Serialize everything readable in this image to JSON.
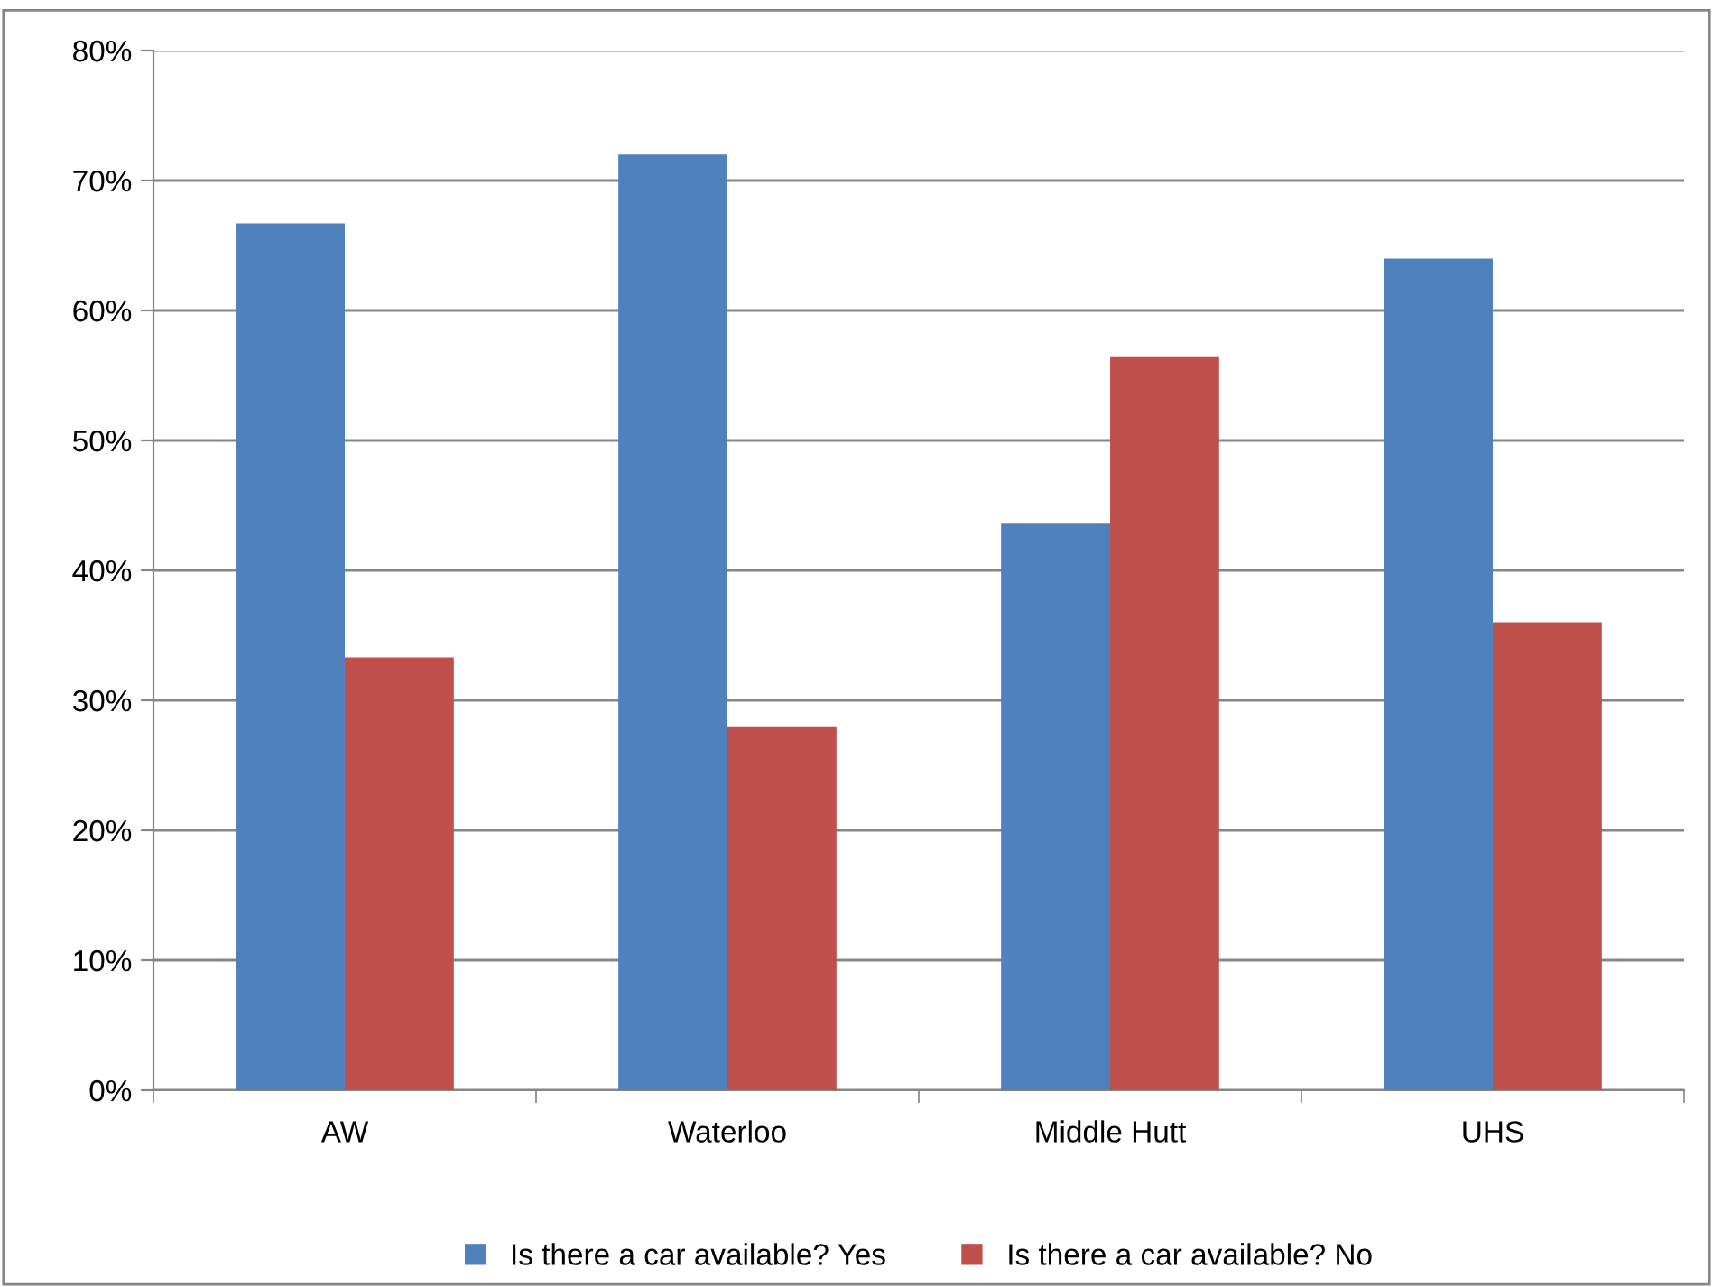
{
  "chart_data": {
    "type": "bar",
    "categories": [
      "AW",
      "Waterloo",
      "Middle Hutt",
      "UHS"
    ],
    "series": [
      {
        "name": "Is there a car available? Yes",
        "color": "#4f81bd",
        "values": [
          66.7,
          72,
          43.6,
          64
        ]
      },
      {
        "name": "Is there a car available? No",
        "color": "#c0504d",
        "values": [
          33.3,
          28,
          56.4,
          36
        ]
      }
    ],
    "ylim": [
      0,
      80
    ],
    "yticks": [
      {
        "value": 0,
        "label": "0%"
      },
      {
        "value": 10,
        "label": "10%"
      },
      {
        "value": 20,
        "label": "20%"
      },
      {
        "value": 30,
        "label": "30%"
      },
      {
        "value": 40,
        "label": "40%"
      },
      {
        "value": 50,
        "label": "50%"
      },
      {
        "value": 60,
        "label": "60%"
      },
      {
        "value": 70,
        "label": "70%"
      },
      {
        "value": 80,
        "label": "80%"
      }
    ],
    "grid": "y",
    "legend": "bottom"
  }
}
